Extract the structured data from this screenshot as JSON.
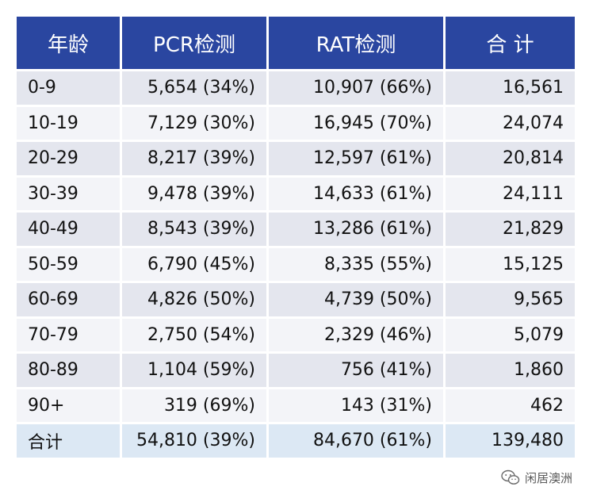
{
  "table": {
    "headers": [
      "年龄",
      "PCR检测",
      "RAT检测",
      "合 计"
    ],
    "rows": [
      {
        "age": "0-9",
        "pcr": "5,654 (34%)",
        "rat": "10,907 (66%)",
        "total": "16,561"
      },
      {
        "age": "10-19",
        "pcr": "7,129 (30%)",
        "rat": "16,945 (70%)",
        "total": "24,074"
      },
      {
        "age": "20-29",
        "pcr": "8,217 (39%)",
        "rat": "12,597 (61%)",
        "total": "20,814"
      },
      {
        "age": "30-39",
        "pcr": "9,478 (39%)",
        "rat": "14,633 (61%)",
        "total": "24,111"
      },
      {
        "age": "40-49",
        "pcr": "8,543 (39%)",
        "rat": "13,286 (61%)",
        "total": "21,829"
      },
      {
        "age": "50-59",
        "pcr": "6,790 (45%)",
        "rat": "8,335 (55%)",
        "total": "15,125"
      },
      {
        "age": "60-69",
        "pcr": "4,826 (50%)",
        "rat": "4,739 (50%)",
        "total": "9,565"
      },
      {
        "age": "70-79",
        "pcr": "2,750 (54%)",
        "rat": "2,329 (46%)",
        "total": "5,079"
      },
      {
        "age": "80-89",
        "pcr": "1,104 (59%)",
        "rat": "756 (41%)",
        "total": "1,860"
      },
      {
        "age": "90+",
        "pcr": "319 (69%)",
        "rat": "143 (31%)",
        "total": "462"
      }
    ],
    "total_row": {
      "age": "合计",
      "pcr": "54,810 (39%)",
      "rat": "84,670 (61%)",
      "total": "139,480"
    }
  },
  "watermark": {
    "text": "闲居澳洲",
    "icon": "wechat-icon"
  },
  "colors": {
    "header_bg": "#2a46a0",
    "row_bg_a": "#e4e6ee",
    "row_bg_b": "#f3f4f8",
    "total_row_bg": "#dce8f4"
  }
}
